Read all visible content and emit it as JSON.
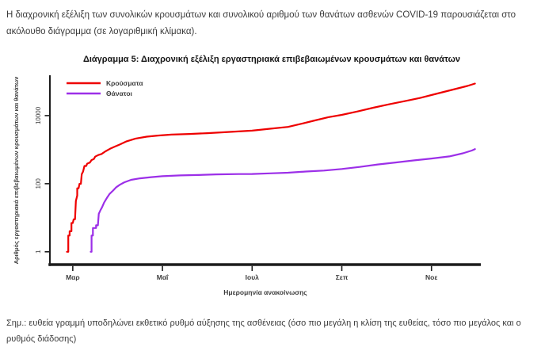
{
  "intro": {
    "text": "Η διαχρονική εξέλιξη των συνολικών κρουσμάτων και συνολικού αριθμού των θανάτων ασθενών COVID-19 παρουσιάζεται στο ακόλουθο διάγραμμα (σε λογαριθμική κλίμακα)."
  },
  "note": {
    "text": "Σημ.: ευθεία γραμμή υποδηλώνει εκθετικό ρυθμό αύξησης της ασθένειας (όσο πιο μεγάλη η κλίση της ευθείας, τόσο πιο μεγάλος και ο ρυθμός διάδοσης)"
  },
  "chart_data": {
    "type": "line",
    "title": "Διάγραμμα 5: Διαχρονική εξέλιξη εργαστηριακά επιβεβαιωμένων κρουσμάτων και θανάτων",
    "xlabel": "Ημερομηνία ανακοίνωσης",
    "ylabel": "Αριθμός εργαστηριακά επιβεβαιωμένων κρουσμάτων και θανάτων",
    "y_scale": "log",
    "x_unit": "month of 2020 (3 = 1 Mar, 11 = 1 Nov)",
    "xlim": [
      2.49,
      12.1
    ],
    "ylim": [
      0.42,
      153000
    ],
    "grid": false,
    "legend_position": "top-left",
    "x_ticks": [
      {
        "value": 3,
        "label": "Μαρ"
      },
      {
        "value": 5,
        "label": "Μαΐ"
      },
      {
        "value": 7,
        "label": "Ιουλ"
      },
      {
        "value": 9,
        "label": "Σεπ"
      },
      {
        "value": 11,
        "label": "Νοε"
      }
    ],
    "y_ticks": [
      {
        "value": 1,
        "label": "1"
      },
      {
        "value": 100,
        "label": "100"
      },
      {
        "value": 10000,
        "label": "10000"
      }
    ],
    "series": [
      {
        "name": "Κρούσματα",
        "color": "#ee0000",
        "points": [
          [
            2.87,
            1
          ],
          [
            2.9,
            1
          ],
          [
            2.9,
            3
          ],
          [
            2.93,
            3
          ],
          [
            2.93,
            4
          ],
          [
            2.97,
            4
          ],
          [
            2.97,
            7
          ],
          [
            3.0,
            7
          ],
          [
            3.02,
            9
          ],
          [
            3.05,
            9
          ],
          [
            3.07,
            31
          ],
          [
            3.1,
            45
          ],
          [
            3.1,
            73
          ],
          [
            3.13,
            73
          ],
          [
            3.15,
            99
          ],
          [
            3.18,
            99
          ],
          [
            3.2,
            190
          ],
          [
            3.23,
            228
          ],
          [
            3.26,
            331
          ],
          [
            3.3,
            331
          ],
          [
            3.32,
            387
          ],
          [
            3.38,
            418
          ],
          [
            3.42,
            495
          ],
          [
            3.47,
            530
          ],
          [
            3.5,
            624
          ],
          [
            3.57,
            695
          ],
          [
            3.64,
            743
          ],
          [
            3.73,
            892
          ],
          [
            3.83,
            1061
          ],
          [
            3.93,
            1212
          ],
          [
            4.05,
            1415
          ],
          [
            4.2,
            1755
          ],
          [
            4.4,
            2114
          ],
          [
            4.65,
            2401
          ],
          [
            4.9,
            2591
          ],
          [
            5.2,
            2760
          ],
          [
            5.6,
            2892
          ],
          [
            6.0,
            3049
          ],
          [
            6.5,
            3310
          ],
          [
            7.0,
            3622
          ],
          [
            7.4,
            4110
          ],
          [
            7.8,
            4662
          ],
          [
            8.1,
            5749
          ],
          [
            8.4,
            7222
          ],
          [
            8.7,
            8987
          ],
          [
            9.0,
            10524
          ],
          [
            9.35,
            13240
          ],
          [
            9.7,
            16976
          ],
          [
            10.05,
            21381
          ],
          [
            10.4,
            26469
          ],
          [
            10.75,
            33000
          ],
          [
            11.1,
            43386
          ],
          [
            11.45,
            56698
          ],
          [
            11.8,
            74205
          ],
          [
            11.97,
            87000
          ]
        ]
      },
      {
        "name": "Θάνατοι",
        "color": "#9c2fe8",
        "points": [
          [
            3.4,
            1
          ],
          [
            3.42,
            1
          ],
          [
            3.42,
            3
          ],
          [
            3.45,
            3
          ],
          [
            3.45,
            5
          ],
          [
            3.52,
            5
          ],
          [
            3.52,
            6
          ],
          [
            3.56,
            6
          ],
          [
            3.58,
            13
          ],
          [
            3.62,
            17
          ],
          [
            3.65,
            20
          ],
          [
            3.7,
            28
          ],
          [
            3.76,
            38
          ],
          [
            3.82,
            50
          ],
          [
            3.9,
            63
          ],
          [
            3.97,
            79
          ],
          [
            4.05,
            93
          ],
          [
            4.15,
            110
          ],
          [
            4.3,
            130
          ],
          [
            4.5,
            144
          ],
          [
            4.75,
            156
          ],
          [
            5.0,
            166
          ],
          [
            5.4,
            175
          ],
          [
            5.8,
            180
          ],
          [
            6.2,
            188
          ],
          [
            6.7,
            192
          ],
          [
            7.0,
            193
          ],
          [
            7.4,
            201
          ],
          [
            7.8,
            210
          ],
          [
            8.2,
            228
          ],
          [
            8.6,
            243
          ],
          [
            9.0,
            271
          ],
          [
            9.4,
            310
          ],
          [
            9.8,
            366
          ],
          [
            10.2,
            420
          ],
          [
            10.6,
            482
          ],
          [
            11.0,
            549
          ],
          [
            11.4,
            635
          ],
          [
            11.7,
            780
          ],
          [
            11.9,
            940
          ],
          [
            11.97,
            1035
          ]
        ]
      }
    ]
  }
}
